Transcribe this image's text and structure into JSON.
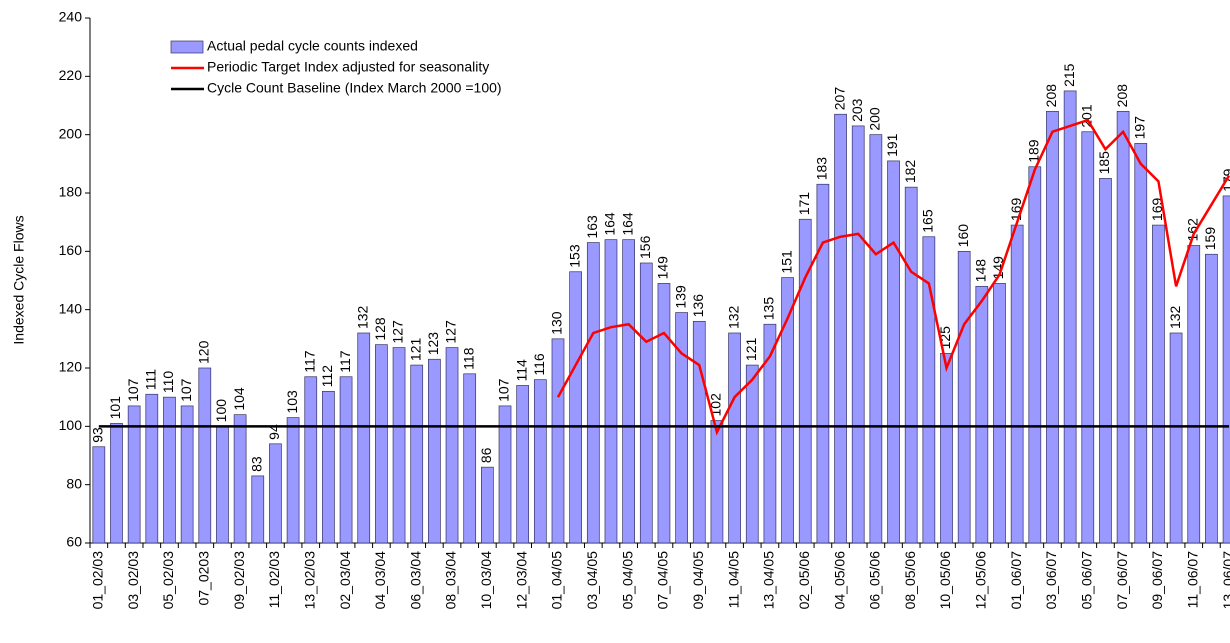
{
  "chart_data": {
    "type": "bar",
    "y_label": "Indexed Cycle Flows",
    "categories": [
      "01_02/03",
      null,
      "03_02/03",
      null,
      "05_02/03",
      null,
      "07_0203",
      null,
      "09_02/03",
      null,
      "11_02/03",
      null,
      "13_02/03",
      null,
      "02_03/04",
      null,
      "04_03/04",
      null,
      "06_03/04",
      null,
      "08_03/04",
      null,
      "10_03/04",
      null,
      "12_03/04",
      null,
      "01_04/05",
      null,
      "03_04/05",
      null,
      "05_04/05",
      null,
      "07_04/05",
      null,
      "09_04/05",
      null,
      "11_04/05",
      null,
      "13_04/05",
      null,
      "02_05/06",
      null,
      "04_05/06",
      null,
      "06_05/06",
      null,
      "08_05/06",
      null,
      "10_05/06",
      null,
      "12_05/06",
      null,
      "01_06/07",
      null,
      "03_06/07",
      null,
      "05_06/07",
      null,
      "07_06/07",
      null,
      "09_06/07",
      null,
      "11_06/07",
      null,
      "13_06/07"
    ],
    "series": [
      {
        "name": "Actual pedal cycle counts indexed",
        "type": "bar",
        "color": "#9999ff",
        "values": [
          93,
          101,
          107,
          111,
          110,
          107,
          120,
          100,
          104,
          83,
          94,
          103,
          117,
          112,
          117,
          132,
          128,
          127,
          121,
          123,
          127,
          118,
          86,
          107,
          114,
          116,
          130,
          153,
          163,
          164,
          164,
          156,
          149,
          139,
          136,
          102,
          132,
          121,
          135,
          151,
          171,
          183,
          207,
          203,
          200,
          191,
          182,
          165,
          125,
          160,
          148,
          149,
          169,
          189,
          208,
          215,
          201,
          185,
          208,
          197,
          169,
          132,
          162,
          159,
          179
        ]
      },
      {
        "name": "Periodic Target Index adjusted for seasonality",
        "type": "line",
        "color": "#ff0000",
        "values": [
          null,
          null,
          null,
          null,
          null,
          null,
          null,
          null,
          null,
          null,
          null,
          null,
          null,
          null,
          null,
          null,
          null,
          null,
          null,
          null,
          null,
          null,
          null,
          null,
          null,
          null,
          110,
          121,
          132,
          134,
          135,
          129,
          132,
          125,
          121,
          98,
          110,
          116,
          124,
          137,
          151,
          163,
          165,
          166,
          159,
          163,
          153,
          149,
          120,
          135,
          143,
          152,
          170,
          188,
          201,
          203,
          205,
          195,
          201,
          190,
          184,
          148,
          166,
          176,
          186
        ]
      },
      {
        "name": "Cycle Count Baseline (Index March 2000 =100)",
        "type": "line",
        "color": "#000000",
        "values": [
          100,
          100,
          100,
          100,
          100,
          100,
          100,
          100,
          100,
          100,
          100,
          100,
          100,
          100,
          100,
          100,
          100,
          100,
          100,
          100,
          100,
          100,
          100,
          100,
          100,
          100,
          100,
          100,
          100,
          100,
          100,
          100,
          100,
          100,
          100,
          100,
          100,
          100,
          100,
          100,
          100,
          100,
          100,
          100,
          100,
          100,
          100,
          100,
          100,
          100,
          100,
          100,
          100,
          100,
          100,
          100,
          100,
          100,
          100,
          100,
          100,
          100,
          100,
          100,
          100
        ]
      }
    ],
    "ylim": [
      60,
      240
    ],
    "yticks": [
      60,
      80,
      100,
      120,
      140,
      160,
      180,
      200,
      220,
      240
    ]
  }
}
